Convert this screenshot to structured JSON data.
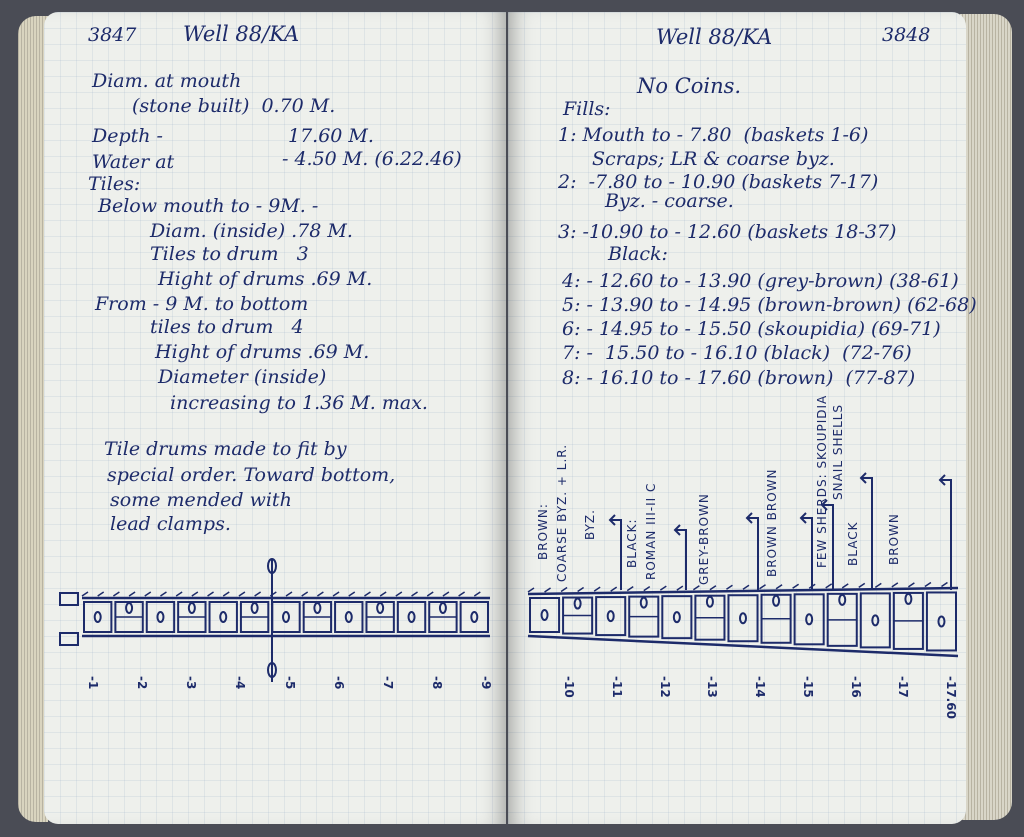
{
  "left_page": {
    "page_number": "3847",
    "heading": "Well 88/KA",
    "lines": [
      "Diam. at mouth",
      "(stone built)  0.70 M.",
      "Depth -",
      "17.60 M.",
      "Water at",
      "- 4.50 M. (6.22.46)",
      "Tiles:",
      "Below mouth to - 9M. -",
      "Diam. (inside) .78 M.",
      "Tiles to drum   3",
      "Hight of drums .69 M.",
      "From - 9 M. to bottom",
      "tiles to drum   4",
      "Hight of drums .69 M.",
      "Diameter (inside)",
      "increasing to 1.36 M. max.",
      "Tile drums made to fit by",
      "special order. Toward bottom,",
      "some mended with",
      "lead clamps."
    ],
    "scale": [
      "-1",
      "-2",
      "-3",
      "-4",
      "-5",
      "-6",
      "-7",
      "-8",
      "-9"
    ]
  },
  "right_page": {
    "page_number": "3848",
    "heading": "Well 88/KA",
    "lines": [
      "No Coins.",
      "Fills:",
      "1: Mouth to - 7.80  (baskets 1-6)",
      "Scraps; LR & coarse byz.",
      "2:  -7.80 to - 10.90 (baskets 7-17)",
      "Byz. - coarse.",
      "3: -10.90 to - 12.60 (baskets 18-37)",
      "Black:",
      "4: - 12.60 to - 13.90 (grey-brown) (38-61)",
      "5: - 13.90 to - 14.95 (brown-brown) (62-68)",
      "6: - 14.95 to - 15.50 (skoupidia) (69-71)",
      "7: -  15.50 to - 16.10 (black)  (72-76)",
      "8: - 16.10 to - 17.60 (brown)  (77-87)"
    ],
    "diagram_labels": [
      "BROWN:",
      "COARSE BYZ. + L.R.",
      "BYZ.",
      "BLACK:",
      "ROMAN III-II C",
      "GREY-BROWN",
      "BROWN BROWN",
      "FEW SHERDS: SKOUPIDIA",
      "SNAIL SHELLS",
      "BLACK",
      "BROWN"
    ],
    "scale": [
      "-10",
      "-11",
      "-12",
      "-13",
      "-14",
      "-15",
      "-16",
      "-17",
      "-17.60"
    ]
  },
  "colors": {
    "ink": "#1d2b6a",
    "paper": "#eef0ec",
    "grid": "#a9bcd4",
    "background": "#4a4c55"
  }
}
